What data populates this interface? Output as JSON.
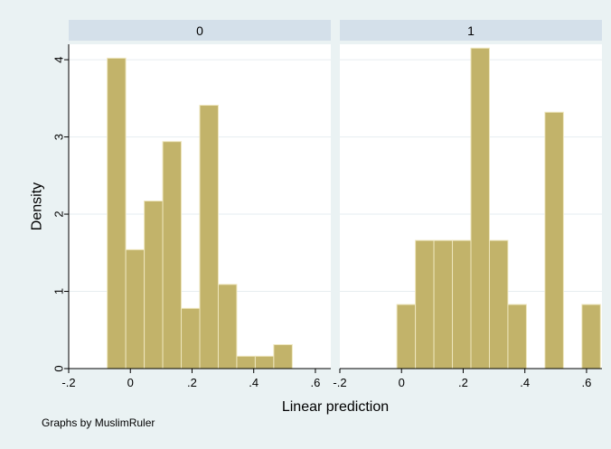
{
  "chart_data": {
    "type": "bar",
    "title": "",
    "ylabel": "Density",
    "xlabel": "Linear prediction",
    "note": "Graphs by MuslimRuler",
    "ylim": [
      0,
      4.2
    ],
    "xlim": [
      -0.2,
      0.65
    ],
    "y_ticks": [
      "0",
      "1",
      "2",
      "3",
      "4"
    ],
    "x_ticks": [
      "-.2",
      "0",
      ".2",
      ".4",
      ".6"
    ],
    "grid": true,
    "colors": {
      "outer_bg": "#eaf2f3",
      "plot_bg": "#ffffff",
      "strip_bg": "#d4e0ea",
      "bar_fill": "#c2b36a",
      "bar_edge": "#eee6bd",
      "grid": "#e6edf0",
      "text": "#000000"
    },
    "panels": [
      {
        "label": "0",
        "bin_width": 0.06,
        "bins": [
          {
            "x0": -0.075,
            "value": 4.02
          },
          {
            "x0": -0.015,
            "value": 1.54
          },
          {
            "x0": 0.045,
            "value": 2.17
          },
          {
            "x0": 0.105,
            "value": 2.94
          },
          {
            "x0": 0.165,
            "value": 0.78
          },
          {
            "x0": 0.225,
            "value": 3.41
          },
          {
            "x0": 0.285,
            "value": 1.09
          },
          {
            "x0": 0.345,
            "value": 0.16
          },
          {
            "x0": 0.405,
            "value": 0.16
          },
          {
            "x0": 0.465,
            "value": 0.31
          }
        ]
      },
      {
        "label": "1",
        "bin_width": 0.06,
        "bins": [
          {
            "x0": -0.015,
            "value": 0.83
          },
          {
            "x0": 0.045,
            "value": 1.66
          },
          {
            "x0": 0.105,
            "value": 1.66
          },
          {
            "x0": 0.165,
            "value": 1.66
          },
          {
            "x0": 0.225,
            "value": 4.15
          },
          {
            "x0": 0.285,
            "value": 1.66
          },
          {
            "x0": 0.345,
            "value": 0.83
          },
          {
            "x0": 0.465,
            "value": 3.32
          },
          {
            "x0": 0.585,
            "value": 0.83
          }
        ]
      }
    ]
  }
}
